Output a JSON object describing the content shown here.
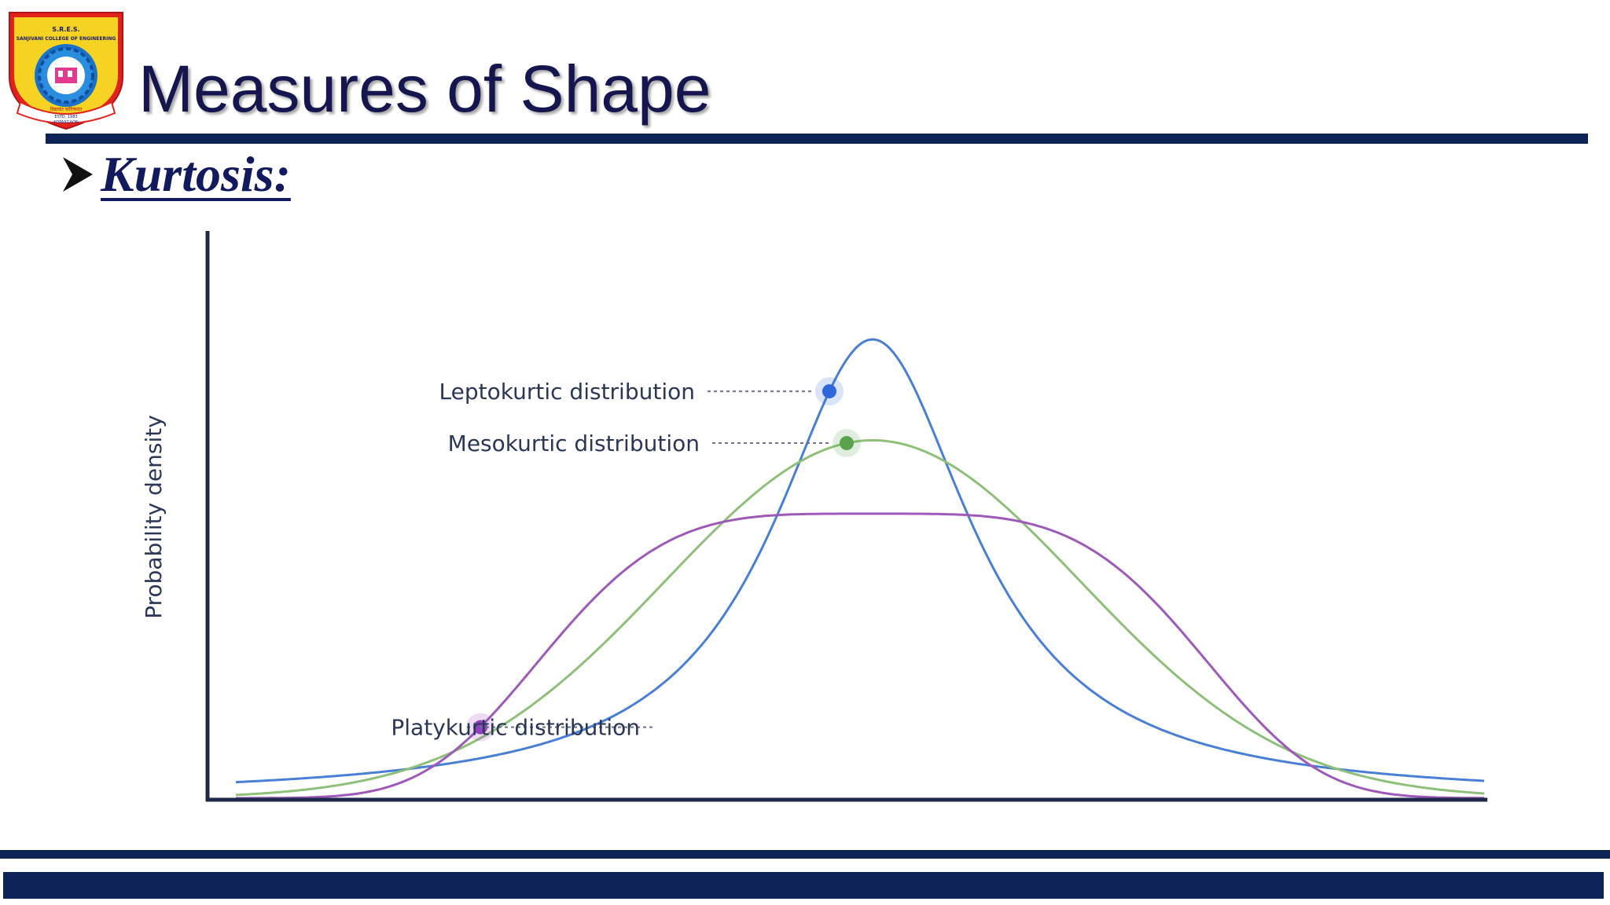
{
  "slide": {
    "title": "Measures of Shape",
    "bullet": "Kurtosis:"
  },
  "logo": {
    "top_text": "S.R.E.S.",
    "college": "SANJIVANI COLLEGE OF ENGINEERING",
    "motto": "विद्यावंत चारित्र्यवंत",
    "estd": "ESTD. 1983",
    "place": "KOPARGAON"
  },
  "chart_data": {
    "type": "line",
    "xlabel": "",
    "ylabel": "Probability density",
    "grid": false,
    "legend": "inline labels left of peaks",
    "series": [
      {
        "name": "Leptokurtic distribution",
        "color": "#4a7fd6",
        "marker_color": "#2f66db",
        "peak": 1.0,
        "width": 0.14,
        "shape": "cauchy",
        "label_at_y": 0.96,
        "label_at_x": -0.05
      },
      {
        "name": "Mesokurtic distribution",
        "color": "#8fc07a",
        "marker_color": "#5aa24c",
        "peak": 0.78,
        "width": 0.24,
        "shape": "gaussian",
        "label_at_y": 0.78,
        "label_at_x": -0.03
      },
      {
        "name": "Platykurtic distribution",
        "color": "#9e5ab8",
        "marker_color": "#8f3fbf",
        "peak": 0.62,
        "width": 0.47,
        "shape": "flat",
        "label_at_y": 0.46,
        "label_at_x": -0.42
      }
    ],
    "colors": {
      "axis": "#1f2a4a",
      "label": "#2a3757",
      "leader": "#6b7385"
    }
  }
}
